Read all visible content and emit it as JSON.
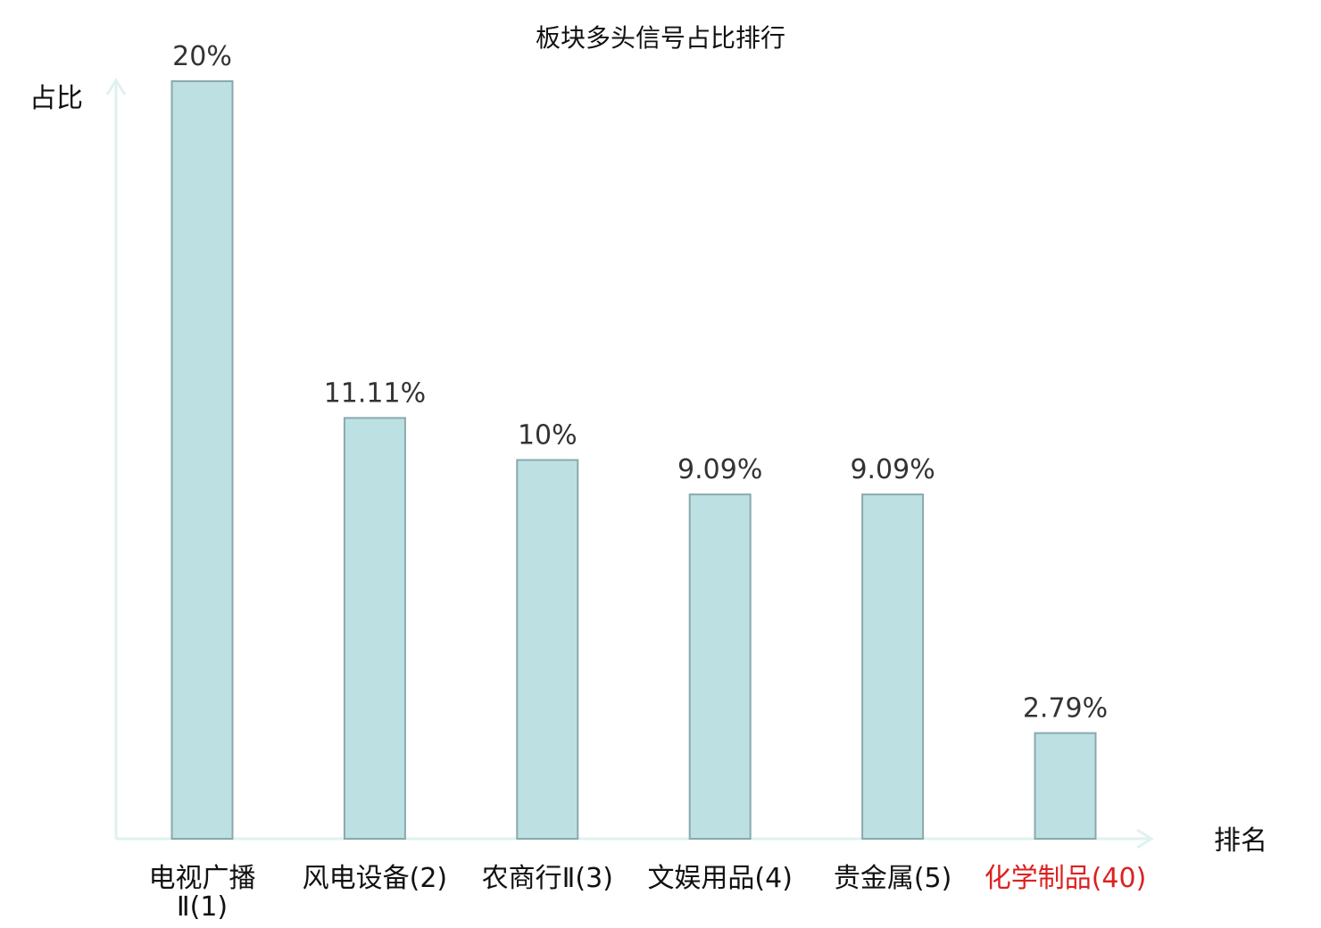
{
  "chart_data": {
    "type": "bar",
    "title": "板块多头信号占比排行",
    "ylabel": "占比",
    "xlabel": "排名",
    "ylim": [
      0,
      20
    ],
    "grid": false,
    "legend": "none",
    "categories": [
      "电视广播Ⅱ(1)",
      "风电设备(2)",
      "农商行Ⅱ(3)",
      "文娱用品(4)",
      "贵金属(5)",
      "化学制品(40)"
    ],
    "category_lines": [
      [
        "电视广播",
        "Ⅱ(1)"
      ],
      [
        "风电设备(2)"
      ],
      [
        "农商行Ⅱ(3)"
      ],
      [
        "文娱用品(4)"
      ],
      [
        "贵金属(5)"
      ],
      [
        "化学制品(40)"
      ]
    ],
    "values": [
      20,
      11.11,
      10,
      9.09,
      9.09,
      2.79
    ],
    "value_labels": [
      "20%",
      "11.11%",
      "10%",
      "9.09%",
      "9.09%",
      "2.79%"
    ],
    "highlight_index": 5,
    "colors": {
      "bar_fill": "#bde0e3",
      "bar_stroke": "#8aa9ac",
      "axis": "#dff2ef",
      "highlight_text": "#dd2020"
    }
  }
}
